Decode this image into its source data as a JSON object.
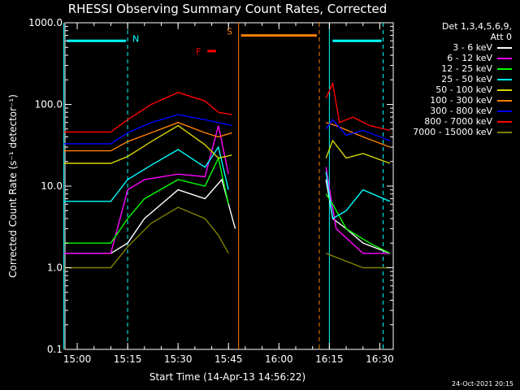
{
  "chart_data": {
    "type": "line",
    "title": "RHESSI Observing Summary Count Rates, Corrected",
    "xlabel": "Start Time (14-Apr-13 14:56:22)",
    "ylabel": "Corrected Count Rate (s⁻¹ detector⁻¹)",
    "x_range": [
      "14:56:22",
      "16:34:00"
    ],
    "x_ticks": [
      "15:00",
      "15:15",
      "15:30",
      "15:45",
      "16:00",
      "16:15",
      "16:30"
    ],
    "y_scale": "log",
    "ylim": [
      0.1,
      1000
    ],
    "y_ticks": [
      "0.1",
      "1.0",
      "10.0",
      "100.0",
      "1000.0"
    ],
    "legend_placement": "top-right, outside plot",
    "legend_title": [
      "Det 1,3,4,5,6,9,",
      "Att 0"
    ],
    "series": [
      {
        "name": "3 - 6 keV",
        "color": "#ffffff",
        "points": [
          [
            "14:56",
            1.5
          ],
          [
            "15:10",
            1.5
          ],
          [
            "15:15",
            2.0
          ],
          [
            "15:20",
            4
          ],
          [
            "15:30",
            9
          ],
          [
            "15:38",
            7
          ],
          [
            "15:43",
            12
          ],
          [
            "15:47",
            3
          ],
          [
            "15:49",
            15
          ],
          [
            "16:14",
            12
          ],
          [
            "16:16",
            4
          ],
          [
            "16:20",
            3
          ],
          [
            "16:25",
            2
          ],
          [
            "16:33",
            1.5
          ]
        ]
      },
      {
        "name": "6 - 12 keV",
        "color": "#ff00ff",
        "points": [
          [
            "14:56",
            1.5
          ],
          [
            "15:10",
            1.5
          ],
          [
            "15:15",
            9
          ],
          [
            "15:20",
            12
          ],
          [
            "15:30",
            14
          ],
          [
            "15:38",
            13
          ],
          [
            "15:42",
            55
          ],
          [
            "15:45",
            14
          ],
          [
            "15:49",
            20
          ],
          [
            "16:14",
            17
          ],
          [
            "16:17",
            3
          ],
          [
            "16:25",
            1.5
          ],
          [
            "16:33",
            1.5
          ]
        ]
      },
      {
        "name": "12 - 25 keV",
        "color": "#00ff00",
        "points": [
          [
            "14:56",
            2.0
          ],
          [
            "15:10",
            2.0
          ],
          [
            "15:15",
            4
          ],
          [
            "15:20",
            7
          ],
          [
            "15:30",
            12
          ],
          [
            "15:38",
            10
          ],
          [
            "15:42",
            22
          ],
          [
            "15:45",
            6
          ],
          [
            "15:49",
            18
          ],
          [
            "16:14",
            8
          ],
          [
            "16:16",
            6
          ],
          [
            "16:20",
            3
          ],
          [
            "16:27",
            2
          ],
          [
            "16:33",
            1.5
          ]
        ]
      },
      {
        "name": "25 - 50 keV",
        "color": "#00ffff",
        "points": [
          [
            "14:56",
            6.5
          ],
          [
            "15:10",
            6.5
          ],
          [
            "15:15",
            12
          ],
          [
            "15:22",
            18
          ],
          [
            "15:30",
            28
          ],
          [
            "15:38",
            17
          ],
          [
            "15:42",
            30
          ],
          [
            "15:45",
            9
          ],
          [
            "15:49",
            12
          ],
          [
            "16:14",
            15
          ],
          [
            "16:16",
            4
          ],
          [
            "16:20",
            5
          ],
          [
            "16:25",
            9
          ],
          [
            "16:33",
            6.5
          ]
        ]
      },
      {
        "name": "50 - 100 keV",
        "color": "#d7d700",
        "points": [
          [
            "14:56",
            19
          ],
          [
            "15:10",
            19
          ],
          [
            "15:15",
            23
          ],
          [
            "15:22",
            35
          ],
          [
            "15:30",
            55
          ],
          [
            "15:38",
            32
          ],
          [
            "15:42",
            22
          ],
          [
            "15:46",
            24
          ],
          [
            "15:49",
            25
          ],
          [
            "16:14",
            22
          ],
          [
            "16:16",
            36
          ],
          [
            "16:20",
            22
          ],
          [
            "16:25",
            25
          ],
          [
            "16:33",
            19
          ]
        ]
      },
      {
        "name": "100 - 300 keV",
        "color": "#ff8000",
        "points": [
          [
            "14:56",
            27
          ],
          [
            "15:10",
            27
          ],
          [
            "15:15",
            35
          ],
          [
            "15:22",
            45
          ],
          [
            "15:30",
            60
          ],
          [
            "15:38",
            45
          ],
          [
            "15:42",
            40
          ],
          [
            "15:46",
            45
          ],
          [
            "15:49",
            50
          ],
          [
            "16:14",
            60
          ],
          [
            "16:17",
            55
          ],
          [
            "16:25",
            40
          ],
          [
            "16:33",
            30
          ]
        ]
      },
      {
        "name": "300 - 800 keV",
        "color": "#0000ff",
        "points": [
          [
            "14:56",
            33
          ],
          [
            "15:10",
            33
          ],
          [
            "15:15",
            45
          ],
          [
            "15:22",
            60
          ],
          [
            "15:30",
            75
          ],
          [
            "15:38",
            65
          ],
          [
            "15:42",
            60
          ],
          [
            "15:46",
            55
          ],
          [
            "15:49",
            70
          ],
          [
            "16:14",
            50
          ],
          [
            "16:16",
            65
          ],
          [
            "16:20",
            42
          ],
          [
            "16:25",
            48
          ],
          [
            "16:33",
            36
          ]
        ]
      },
      {
        "name": "800 - 7000 keV",
        "color": "#ff0000",
        "points": [
          [
            "14:56",
            46
          ],
          [
            "15:10",
            46
          ],
          [
            "15:15",
            65
          ],
          [
            "15:22",
            100
          ],
          [
            "15:30",
            140
          ],
          [
            "15:38",
            110
          ],
          [
            "15:42",
            80
          ],
          [
            "15:46",
            75
          ],
          [
            "15:49",
            90
          ],
          [
            "16:14",
            120
          ],
          [
            "16:16",
            180
          ],
          [
            "16:18",
            60
          ],
          [
            "16:22",
            70
          ],
          [
            "16:27",
            55
          ],
          [
            "16:33",
            48
          ]
        ]
      },
      {
        "name": "7000 - 15000 keV",
        "color": "#808000",
        "points": [
          [
            "14:56",
            1.0
          ],
          [
            "15:10",
            1.0
          ],
          [
            "15:15",
            1.8
          ],
          [
            "15:22",
            3.5
          ],
          [
            "15:30",
            5.5
          ],
          [
            "15:38",
            4
          ],
          [
            "15:42",
            2.5
          ],
          [
            "15:45",
            1.5
          ],
          [
            "15:49",
            3
          ],
          [
            "16:14",
            1.5
          ],
          [
            "16:25",
            1.0
          ],
          [
            "16:33",
            1.0
          ]
        ]
      }
    ],
    "annotations": [
      {
        "label": "N",
        "color": "#00ffff",
        "kind": "night",
        "intervals": [
          [
            "14:56",
            "15:15"
          ],
          [
            "16:15",
            "16:31"
          ]
        ],
        "y": 600,
        "solid_edges": [
          "14:56",
          "16:15"
        ],
        "dashed_edges": [
          "15:15",
          "16:31"
        ]
      },
      {
        "label": "S",
        "color": "#ff8000",
        "kind": "saa",
        "intervals": [
          [
            "15:48",
            "16:12"
          ]
        ],
        "y": 700,
        "solid_edges": [
          "15:48"
        ],
        "dashed_edges": [
          "16:12"
        ]
      },
      {
        "label": "F",
        "color": "#ff0000",
        "kind": "flare",
        "intervals": [
          [
            "15:38",
            "15:42"
          ]
        ],
        "y": 450
      }
    ],
    "gaps": [
      [
        "15:48",
        "16:14"
      ]
    ],
    "data_start": "14:56",
    "data_end": "16:33"
  },
  "footer": {
    "timestamp": "24-Oct-2021 20:15"
  }
}
